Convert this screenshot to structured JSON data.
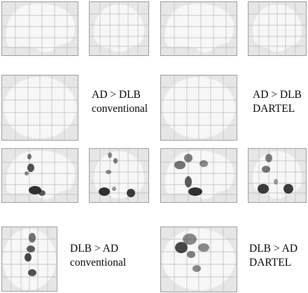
{
  "captions": {
    "ad_dlb_conventional": {
      "line1": "AD > DLB",
      "line2": "conventional"
    },
    "ad_dlb_dartel": {
      "line1": "AD > DLB",
      "line2": "DARTEL"
    },
    "dlb_ad_conventional": {
      "line1": "DLB > AD",
      "line2": "conventional"
    },
    "dlb_ad_dartel": {
      "line1": "DLB > AD",
      "line2": "DARTEL"
    }
  },
  "colors": {
    "frame_fill": "#e6e6e6",
    "frame_stroke": "#9a9a9a",
    "brain_fill": "#f7f7f7",
    "grid_line": "#b8b8b8",
    "blob_color": "#1a1a1a"
  }
}
